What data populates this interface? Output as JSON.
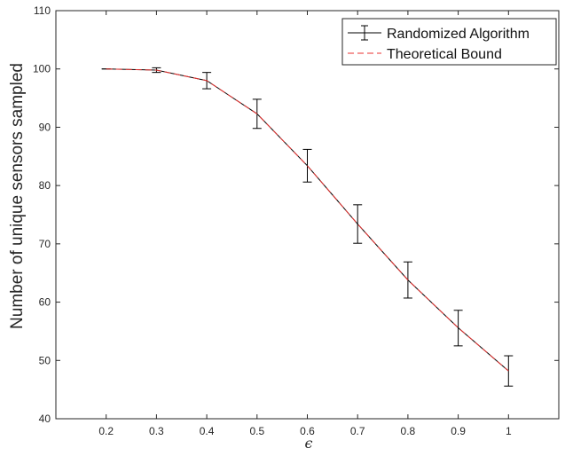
{
  "chart_data": {
    "type": "line",
    "x": [
      0.2,
      0.3,
      0.4,
      0.5,
      0.6,
      0.7,
      0.8,
      0.9,
      1.0
    ],
    "x_tick_labels": [
      "0.2",
      "0.3",
      "0.4",
      "0.5",
      "0.6",
      "0.7",
      "0.8",
      "0.9",
      "1"
    ],
    "y_ticks": [
      40,
      50,
      60,
      70,
      80,
      90,
      100,
      110
    ],
    "y_tick_labels": [
      "40",
      "50",
      "60",
      "70",
      "80",
      "90",
      "100",
      "110"
    ],
    "xlim": [
      0.1,
      1.1
    ],
    "ylim": [
      40,
      110
    ],
    "xlabel": "ϵ",
    "ylabel": "Number of unique sensors sampled",
    "grid": false,
    "legend_position": "top-right",
    "series": [
      {
        "name": "Randomized Algorithm",
        "color": "#000000",
        "style": "solid-with-errorbars",
        "values": [
          100.0,
          99.8,
          98.0,
          92.3,
          83.4,
          73.4,
          63.8,
          55.6,
          48.2
        ],
        "err_low": [
          0.0,
          0.4,
          1.4,
          2.5,
          2.8,
          3.3,
          3.1,
          3.1,
          2.6
        ],
        "err_high": [
          0.0,
          0.4,
          1.4,
          2.5,
          2.8,
          3.3,
          3.1,
          3.0,
          2.6
        ]
      },
      {
        "name": "Theoretical Bound",
        "color": "#e8312f",
        "style": "dashed",
        "values": [
          100.0,
          99.8,
          98.0,
          92.3,
          83.4,
          73.4,
          63.8,
          55.6,
          48.2
        ]
      }
    ]
  }
}
